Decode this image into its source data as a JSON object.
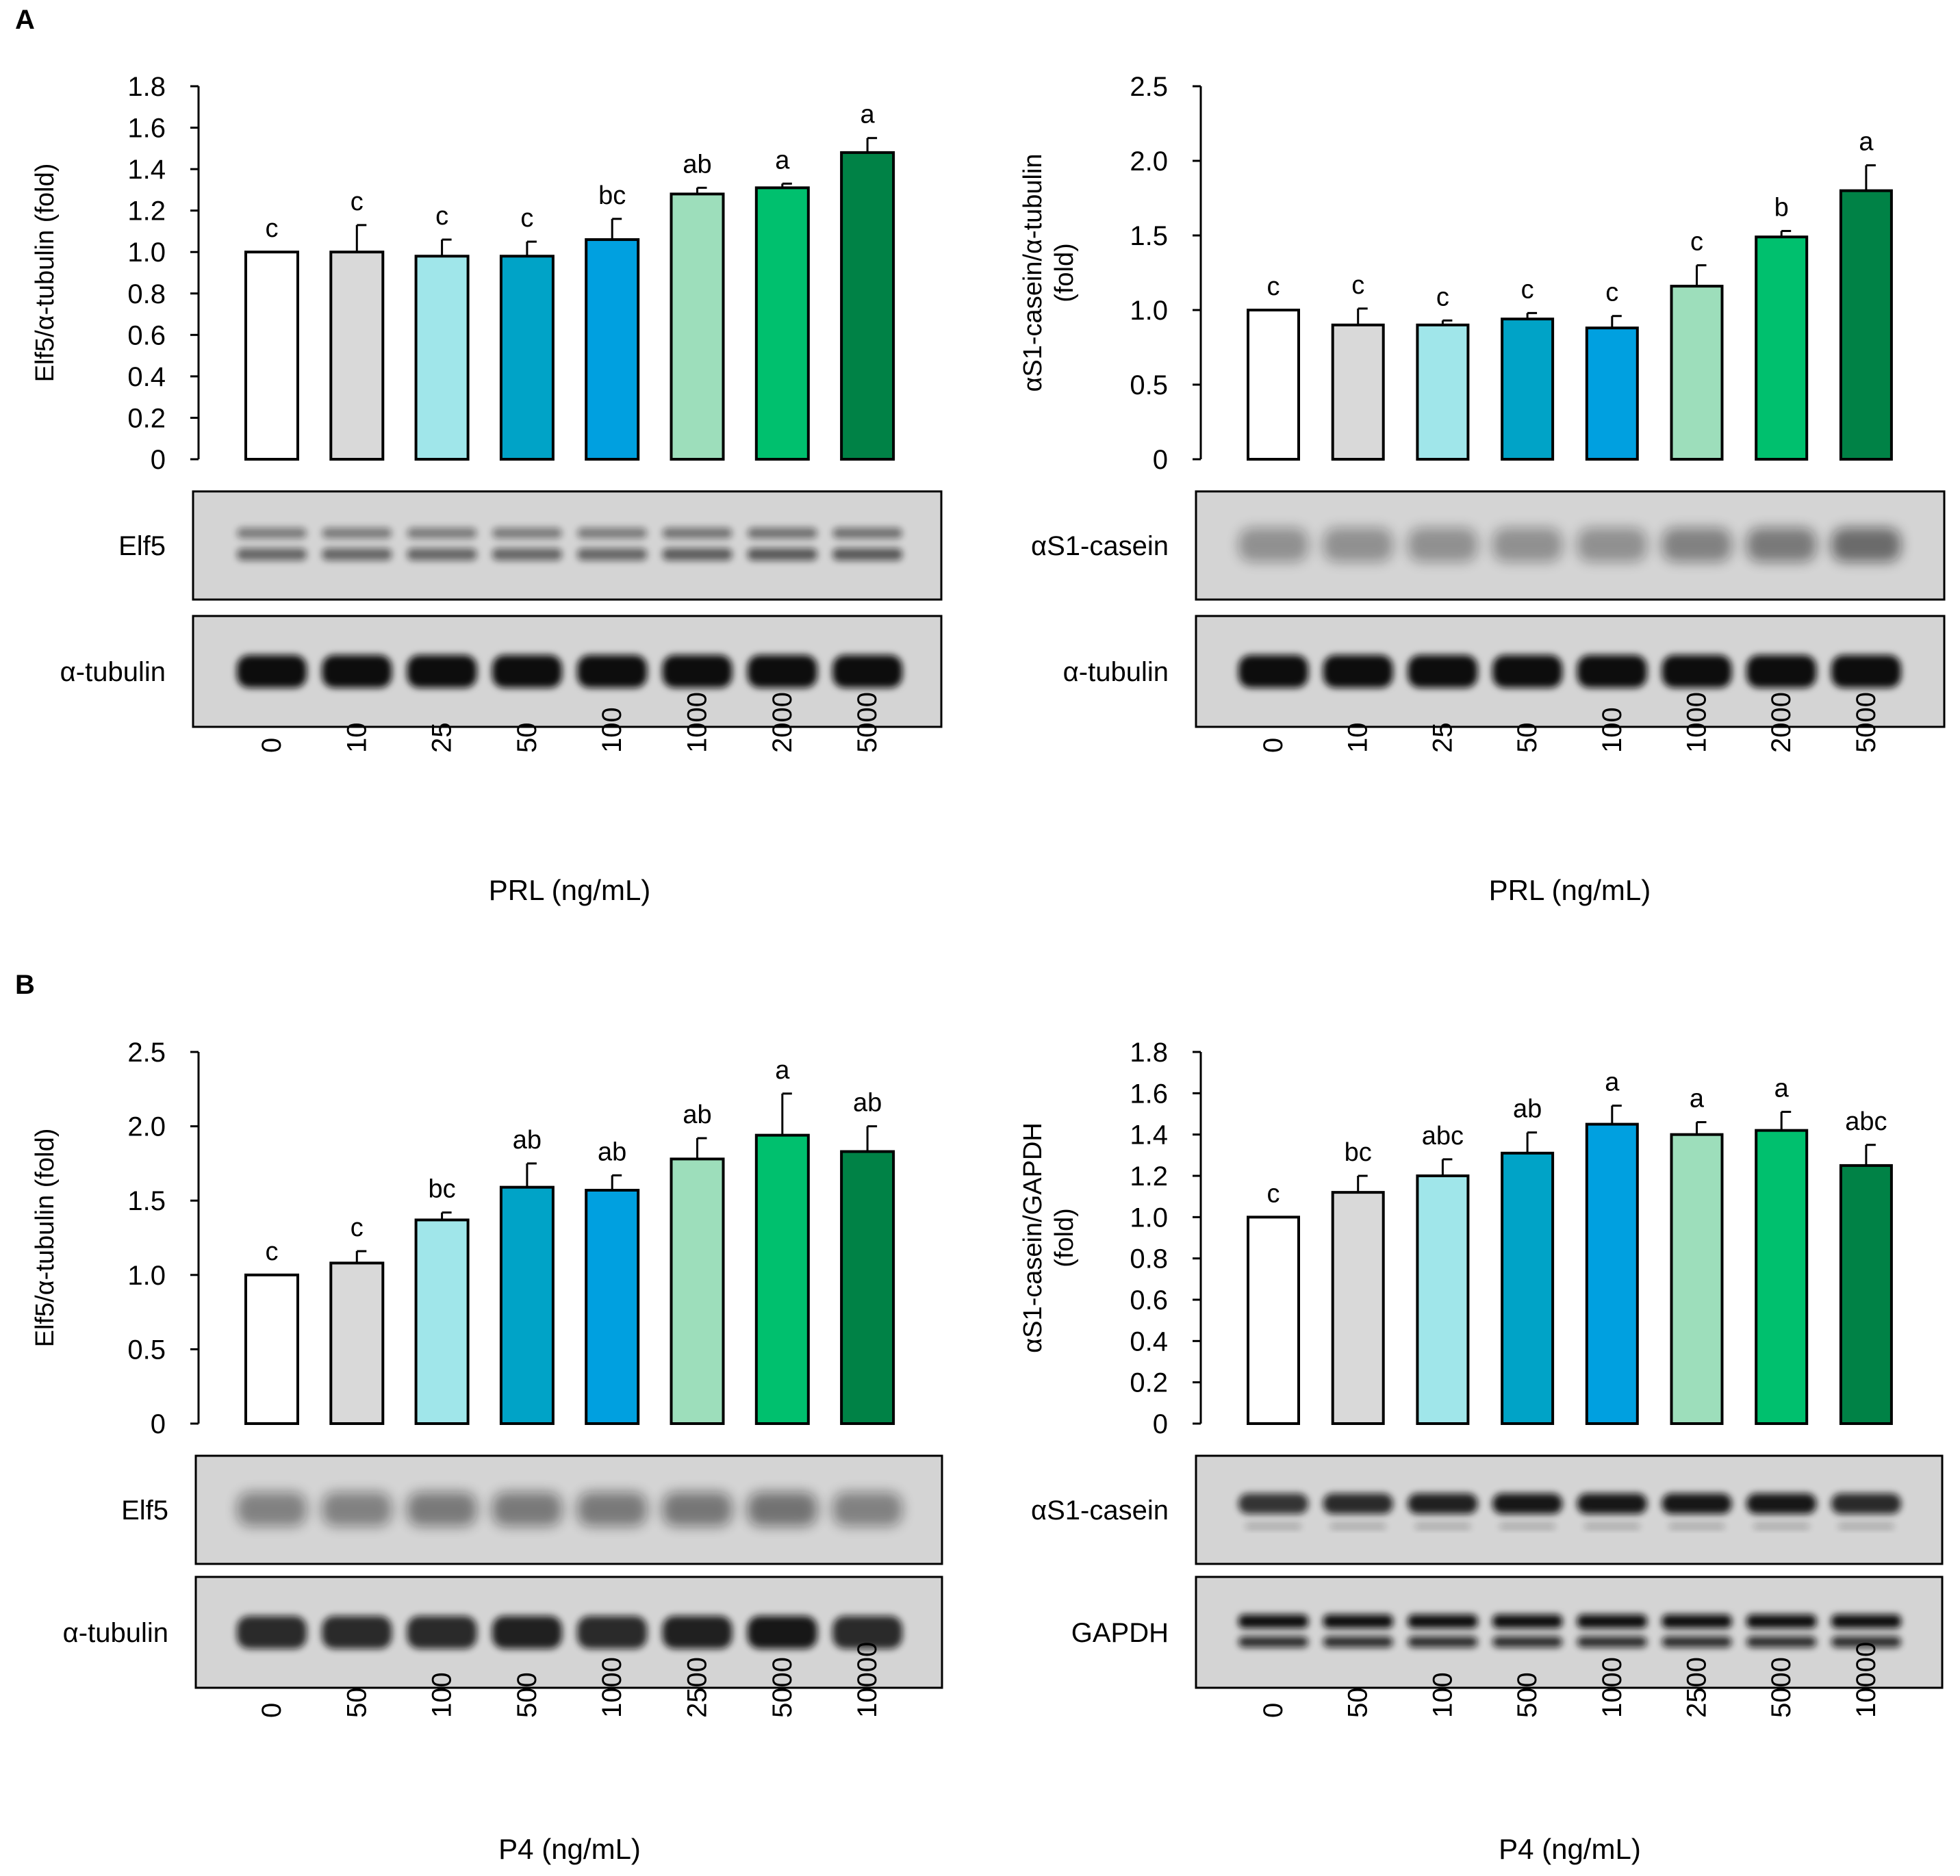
{
  "figure": {
    "panel_labels": [
      "A",
      "B"
    ],
    "bar_colors": [
      "#FFFFFF",
      "#D9D9D9",
      "#A0E6EA",
      "#00A3C7",
      "#00A0E0",
      "#9DDEBB",
      "#00C06E",
      "#008246"
    ],
    "blot_background": "#D4D4D4",
    "band_color": "#111111"
  },
  "chart_data": [
    {
      "type": "bar",
      "panel": "A",
      "ylabel": "Elf5/α-tubulin (fold)",
      "xlabel": "PRL (ng/mL)",
      "categories": [
        "0",
        "10",
        "25",
        "50",
        "100",
        "1000",
        "2000",
        "5000"
      ],
      "values": [
        1.0,
        1.0,
        0.98,
        0.98,
        1.06,
        1.28,
        1.31,
        1.48
      ],
      "errors": [
        0.0,
        0.13,
        0.08,
        0.07,
        0.1,
        0.03,
        0.02,
        0.07
      ],
      "significance": [
        "c",
        "c",
        "c",
        "c",
        "bc",
        "ab",
        "a",
        "a"
      ],
      "ylim": [
        0,
        1.8
      ],
      "yticks": [
        "0",
        "0.2",
        "0.4",
        "0.6",
        "0.8",
        "1.0",
        "1.2",
        "1.4",
        "1.6",
        "1.8"
      ],
      "blots": [
        {
          "label": "Elf5",
          "pattern": "double",
          "intensity": [
            0.55,
            0.55,
            0.55,
            0.55,
            0.55,
            0.6,
            0.62,
            0.62
          ]
        },
        {
          "label": "α-tubulin",
          "pattern": "single",
          "intensity": [
            1,
            1,
            1,
            1,
            1,
            1,
            1,
            1
          ]
        }
      ]
    },
    {
      "type": "bar",
      "panel": "A",
      "ylabel": "αS1-casein/α-tubulin (fold)",
      "xlabel": "PRL (ng/mL)",
      "categories": [
        "0",
        "10",
        "25",
        "50",
        "100",
        "1000",
        "2000",
        "5000"
      ],
      "values": [
        1.0,
        0.9,
        0.9,
        0.94,
        0.88,
        1.16,
        1.49,
        1.8
      ],
      "errors": [
        0.0,
        0.11,
        0.03,
        0.04,
        0.08,
        0.14,
        0.04,
        0.17
      ],
      "significance": [
        "c",
        "c",
        "c",
        "c",
        "c",
        "c",
        "b",
        "a"
      ],
      "ylim": [
        0,
        2.5
      ],
      "yticks": [
        "0",
        "0.5",
        "1.0",
        "1.5",
        "2.0",
        "2.5"
      ],
      "blots": [
        {
          "label": "αS1-casein",
          "pattern": "diffuse",
          "intensity": [
            0.45,
            0.45,
            0.45,
            0.45,
            0.45,
            0.55,
            0.6,
            0.7
          ]
        },
        {
          "label": "α-tubulin",
          "pattern": "single",
          "intensity": [
            1,
            1,
            1,
            1,
            1,
            1,
            1,
            1
          ]
        }
      ]
    },
    {
      "type": "bar",
      "panel": "B",
      "ylabel": "Elf5/α-tubulin (fold)",
      "xlabel": "P4 (ng/mL)",
      "categories": [
        "0",
        "50",
        "100",
        "500",
        "1000",
        "2500",
        "5000",
        "10000"
      ],
      "values": [
        1.0,
        1.08,
        1.37,
        1.59,
        1.57,
        1.78,
        1.94,
        1.83
      ],
      "errors": [
        0.0,
        0.08,
        0.05,
        0.16,
        0.1,
        0.14,
        0.28,
        0.17
      ],
      "significance": [
        "c",
        "c",
        "bc",
        "ab",
        "ab",
        "ab",
        "a",
        "ab"
      ],
      "ylim": [
        0,
        2.5
      ],
      "yticks": [
        "0",
        "0.5",
        "1.0",
        "1.5",
        "2.0",
        "2.5"
      ],
      "blots": [
        {
          "label": "Elf5",
          "pattern": "diffuse",
          "intensity": [
            0.55,
            0.55,
            0.6,
            0.6,
            0.6,
            0.62,
            0.65,
            0.55
          ]
        },
        {
          "label": "α-tubulin",
          "pattern": "single",
          "intensity": [
            0.85,
            0.85,
            0.85,
            0.9,
            0.85,
            0.9,
            0.95,
            0.85
          ]
        }
      ]
    },
    {
      "type": "bar",
      "panel": "B",
      "ylabel": "αS1-casein/GAPDH (fold)",
      "xlabel": "P4 (ng/mL)",
      "categories": [
        "0",
        "50",
        "100",
        "500",
        "1000",
        "2500",
        "5000",
        "10000"
      ],
      "values": [
        1.0,
        1.12,
        1.2,
        1.31,
        1.45,
        1.4,
        1.42,
        1.25
      ],
      "errors": [
        0.0,
        0.08,
        0.08,
        0.1,
        0.09,
        0.06,
        0.09,
        0.1
      ],
      "significance": [
        "c",
        "bc",
        "abc",
        "ab",
        "a",
        "a",
        "a",
        "abc"
      ],
      "ylim": [
        0,
        1.8
      ],
      "yticks": [
        "0",
        "0.2",
        "0.4",
        "0.6",
        "0.8",
        "1.0",
        "1.2",
        "1.4",
        "1.6",
        "1.8"
      ],
      "blots": [
        {
          "label": "αS1-casein",
          "pattern": "sharp",
          "intensity": [
            0.8,
            0.85,
            0.9,
            0.95,
            0.95,
            0.95,
            0.95,
            0.85
          ]
        },
        {
          "label": "GAPDH",
          "pattern": "doublet",
          "intensity": [
            1,
            1,
            1,
            1,
            1,
            1,
            1,
            1
          ]
        }
      ]
    }
  ]
}
